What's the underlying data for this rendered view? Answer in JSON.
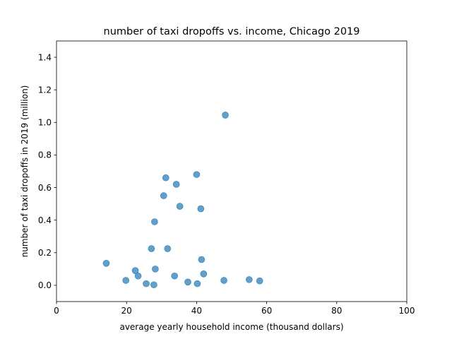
{
  "chart_data": {
    "type": "scatter",
    "title": "number of taxi dropoffs vs. income, Chicago 2019",
    "xlabel": "average yearly household income (thousand dollars)",
    "ylabel": "number of taxi dropoffs in 2019 (million)",
    "xlim": [
      0,
      100
    ],
    "ylim": [
      -0.1,
      1.5
    ],
    "xticks": [
      0,
      20,
      40,
      60,
      80,
      100
    ],
    "yticks": [
      0.0,
      0.2,
      0.4,
      0.6,
      0.8,
      1.0,
      1.2,
      1.4
    ],
    "xtick_labels": [
      "0",
      "20",
      "40",
      "60",
      "80",
      "100"
    ],
    "ytick_labels": [
      "0.0",
      "0.2",
      "0.4",
      "0.6",
      "0.8",
      "1.0",
      "1.2",
      "1.4"
    ],
    "grid": false,
    "marker_color": "#1f77b4",
    "points": [
      {
        "x": 14.2,
        "y": 0.135
      },
      {
        "x": 19.8,
        "y": 0.03
      },
      {
        "x": 22.5,
        "y": 0.09
      },
      {
        "x": 23.3,
        "y": 0.057
      },
      {
        "x": 25.6,
        "y": 0.01
      },
      {
        "x": 27.1,
        "y": 0.225
      },
      {
        "x": 27.8,
        "y": 0.003
      },
      {
        "x": 28.0,
        "y": 0.39
      },
      {
        "x": 28.2,
        "y": 0.1
      },
      {
        "x": 30.6,
        "y": 0.55
      },
      {
        "x": 31.2,
        "y": 0.66
      },
      {
        "x": 31.7,
        "y": 0.225
      },
      {
        "x": 33.7,
        "y": 0.057
      },
      {
        "x": 34.2,
        "y": 0.62
      },
      {
        "x": 35.2,
        "y": 0.485
      },
      {
        "x": 37.5,
        "y": 0.02
      },
      {
        "x": 40.0,
        "y": 0.68
      },
      {
        "x": 40.2,
        "y": 0.01
      },
      {
        "x": 41.2,
        "y": 0.47
      },
      {
        "x": 41.4,
        "y": 0.158
      },
      {
        "x": 42.0,
        "y": 0.07
      },
      {
        "x": 47.8,
        "y": 0.03
      },
      {
        "x": 48.2,
        "y": 1.045
      },
      {
        "x": 55.0,
        "y": 0.035
      },
      {
        "x": 58.0,
        "y": 0.027
      }
    ]
  }
}
